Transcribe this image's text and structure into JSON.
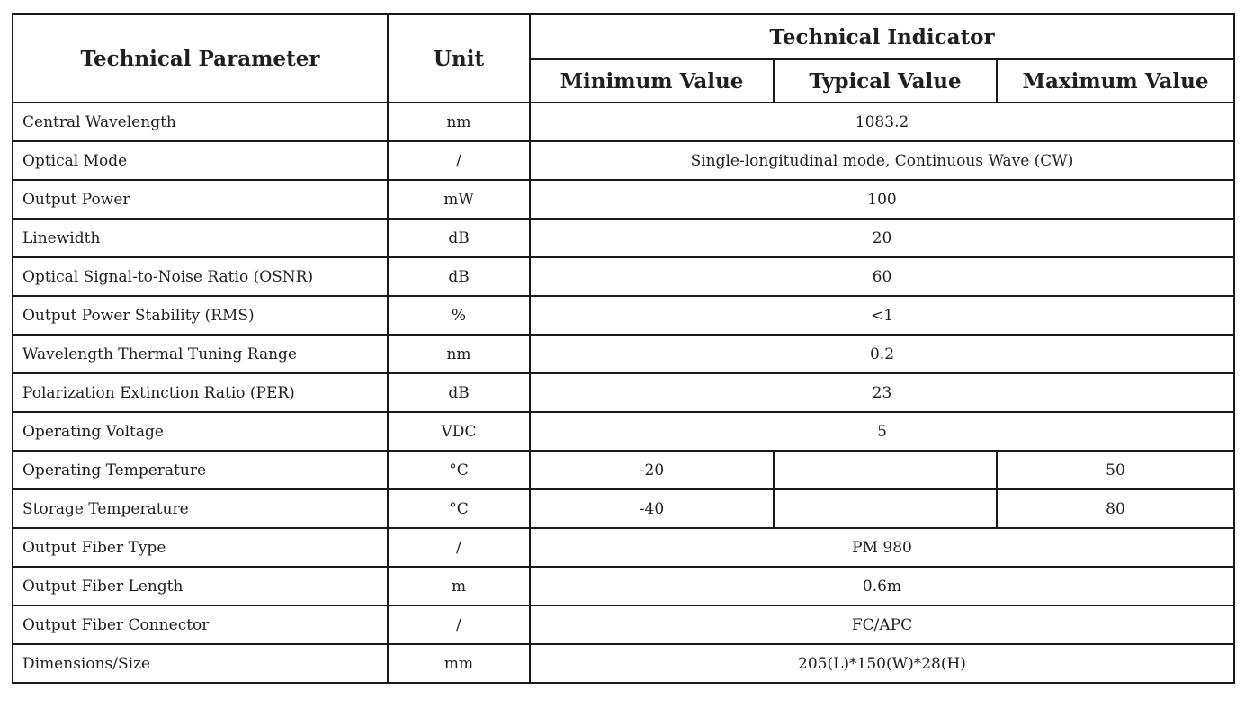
{
  "colors": {
    "border": "#1a1a1a",
    "text": "#1f1f1f",
    "background": "#ffffff"
  },
  "table": {
    "header": {
      "parameter": "Technical Parameter",
      "unit": "Unit",
      "indicator": "Technical Indicator",
      "min": "Minimum Value",
      "typ": "Typical Value",
      "max": "Maximum Value"
    },
    "rows": [
      {
        "parameter": "Central Wavelength",
        "unit": "nm",
        "value": "1083.2"
      },
      {
        "parameter": "Optical Mode",
        "unit": "/",
        "value": "Single-longitudinal mode, Continuous Wave (CW)"
      },
      {
        "parameter": "Output Power",
        "unit": "mW",
        "value": "100"
      },
      {
        "parameter": "Linewidth",
        "unit": "dB",
        "value": "20"
      },
      {
        "parameter": "Optical Signal-to-Noise Ratio (OSNR)",
        "unit": "dB",
        "value": "60"
      },
      {
        "parameter": "Output Power Stability (RMS)",
        "unit": "%",
        "value": "<1"
      },
      {
        "parameter": "Wavelength Thermal Tuning Range",
        "unit": "nm",
        "value": "0.2"
      },
      {
        "parameter": "Polarization Extinction Ratio (PER)",
        "unit": "dB",
        "value": "23"
      },
      {
        "parameter": "Operating Voltage",
        "unit": "VDC",
        "value": "5"
      },
      {
        "parameter": "Operating Temperature",
        "unit": "°C",
        "min": "-20",
        "typ": "",
        "max": "50"
      },
      {
        "parameter": "Storage Temperature",
        "unit": "°C",
        "min": "-40",
        "typ": "",
        "max": "80"
      },
      {
        "parameter": "Output Fiber Type",
        "unit": "/",
        "value": "PM 980"
      },
      {
        "parameter": "Output Fiber Length",
        "unit": "m",
        "value": "0.6m"
      },
      {
        "parameter": "Output Fiber Connector",
        "unit": "/",
        "value": "FC/APC"
      },
      {
        "parameter": "Dimensions/Size",
        "unit": "mm",
        "value": "205(L)*150(W)*28(H)"
      }
    ]
  }
}
